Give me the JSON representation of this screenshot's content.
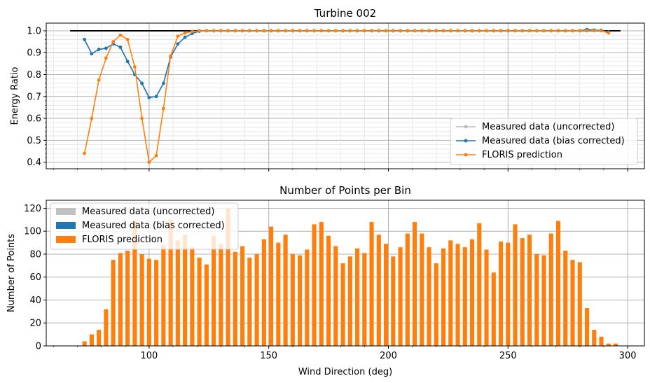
{
  "chart_data": [
    {
      "type": "line",
      "title": "Turbine 002",
      "xlabel": "",
      "ylabel": "Energy Ratio",
      "xlim": [
        57,
        307
      ],
      "ylim": [
        0.37,
        1.035
      ],
      "yticks": [
        0.4,
        0.5,
        0.6,
        0.7,
        0.8,
        0.9,
        1.0
      ],
      "ytick_labels": [
        "0.4",
        "0.5",
        "0.6",
        "0.7",
        "0.8",
        "0.9",
        "1.0"
      ],
      "xticks": [
        100,
        150,
        200,
        250,
        300
      ],
      "grid": true,
      "legend_position": "lower-right",
      "reference_line": {
        "y": 1.0,
        "x": [
          67,
          297
        ],
        "color": "#000000"
      },
      "series": [
        {
          "name": "Measured data (uncorrected)",
          "color": "#bbbbbb",
          "x": [
            73,
            76,
            79,
            82,
            85,
            88,
            91,
            94,
            97,
            100,
            103,
            106,
            109,
            112,
            115
          ],
          "y": [
            0.96,
            0.895,
            0.915,
            0.92,
            0.94,
            0.925,
            0.86,
            0.8,
            0.76,
            0.695,
            0.7,
            0.76,
            0.88,
            0.94,
            0.97
          ]
        },
        {
          "name": "Measured data (bias corrected)",
          "color": "#1f77b4",
          "x": [
            73,
            76,
            79,
            82,
            85,
            88,
            91,
            94,
            97,
            100,
            103,
            106,
            109,
            112,
            115,
            118,
            121,
            124,
            127,
            130,
            133,
            136,
            139,
            142,
            145,
            148,
            151,
            154,
            157,
            160,
            163,
            166,
            169,
            172,
            175,
            178,
            181,
            184,
            187,
            190,
            193,
            196,
            199,
            202,
            205,
            208,
            211,
            214,
            217,
            220,
            223,
            226,
            229,
            232,
            235,
            238,
            241,
            244,
            247,
            250,
            253,
            256,
            259,
            262,
            265,
            268,
            271,
            274,
            277,
            280,
            283,
            286,
            289,
            292
          ],
          "y": [
            0.96,
            0.895,
            0.915,
            0.92,
            0.94,
            0.925,
            0.86,
            0.8,
            0.76,
            0.695,
            0.7,
            0.76,
            0.88,
            0.94,
            0.97,
            0.988,
            0.998,
            1.0,
            1.0,
            1.0,
            1.0,
            1.0,
            1.0,
            1.0,
            1.0,
            1.0,
            1.0,
            1.0,
            1.0,
            1.0,
            1.0,
            1.0,
            1.0,
            1.0,
            1.0,
            1.0,
            1.0,
            1.0,
            1.0,
            1.0,
            1.0,
            1.0,
            1.0,
            1.0,
            1.0,
            1.0,
            1.0,
            1.0,
            1.0,
            1.0,
            1.0,
            1.0,
            1.0,
            1.0,
            1.0,
            1.0,
            1.0,
            1.0,
            1.0,
            1.0,
            1.0,
            1.0,
            1.0,
            1.0,
            1.0,
            1.0,
            1.0,
            1.0,
            1.0,
            1.0,
            1.006,
            1.003,
            1.002,
            0.995
          ]
        },
        {
          "name": "FLORIS prediction",
          "color": "#ff7f0e",
          "x": [
            73,
            76,
            79,
            82,
            85,
            88,
            91,
            94,
            97,
            100,
            103,
            106,
            109,
            112,
            115,
            118,
            121,
            124,
            127,
            130,
            133,
            136,
            139,
            142,
            145,
            148,
            151,
            154,
            157,
            160,
            163,
            166,
            169,
            172,
            175,
            178,
            181,
            184,
            187,
            190,
            193,
            196,
            199,
            202,
            205,
            208,
            211,
            214,
            217,
            220,
            223,
            226,
            229,
            232,
            235,
            238,
            241,
            244,
            247,
            250,
            253,
            256,
            259,
            262,
            265,
            268,
            271,
            274,
            277,
            280,
            283,
            286,
            289,
            292
          ],
          "y": [
            0.44,
            0.6,
            0.775,
            0.875,
            0.95,
            0.98,
            0.96,
            0.835,
            0.6,
            0.4,
            0.43,
            0.645,
            0.885,
            0.975,
            0.99,
            0.997,
            1.0,
            1.0,
            1.0,
            1.0,
            1.0,
            1.0,
            1.0,
            1.0,
            1.0,
            1.0,
            1.0,
            1.0,
            1.0,
            1.0,
            1.0,
            1.0,
            1.0,
            1.0,
            1.0,
            1.0,
            1.0,
            1.0,
            1.0,
            1.0,
            1.0,
            1.0,
            1.0,
            1.0,
            1.0,
            1.0,
            1.0,
            1.0,
            1.0,
            1.0,
            1.0,
            1.0,
            1.0,
            1.0,
            1.0,
            1.0,
            1.0,
            1.0,
            1.0,
            1.0,
            1.0,
            1.0,
            1.0,
            1.0,
            1.0,
            1.0,
            1.0,
            1.0,
            1.0,
            1.0,
            1.0,
            1.0,
            1.0,
            0.99
          ]
        }
      ]
    },
    {
      "type": "bar",
      "title": "Number of Points per Bin",
      "xlabel": "Wind Direction (deg)",
      "ylabel": "Number of Points",
      "xlim": [
        57,
        307
      ],
      "ylim": [
        0,
        127
      ],
      "yticks": [
        0,
        20,
        40,
        60,
        80,
        100,
        120
      ],
      "ytick_labels": [
        "0",
        "20",
        "40",
        "60",
        "80",
        "100",
        "120"
      ],
      "xticks": [
        100,
        150,
        200,
        250,
        300
      ],
      "xtick_labels": [
        "100",
        "150",
        "200",
        "250",
        "300"
      ],
      "grid": true,
      "legend_position": "upper-left",
      "x": [
        73,
        76,
        79,
        82,
        85,
        88,
        91,
        94,
        97,
        100,
        103,
        106,
        109,
        112,
        115,
        118,
        121,
        124,
        127,
        130,
        133,
        136,
        139,
        142,
        145,
        148,
        151,
        154,
        157,
        160,
        163,
        166,
        169,
        172,
        175,
        178,
        181,
        184,
        187,
        190,
        193,
        196,
        199,
        202,
        205,
        208,
        211,
        214,
        217,
        220,
        223,
        226,
        229,
        232,
        235,
        238,
        241,
        244,
        247,
        250,
        253,
        256,
        259,
        262,
        265,
        268,
        271,
        274,
        277,
        280,
        283,
        286,
        289,
        292,
        295
      ],
      "series": [
        {
          "name": "Measured data (uncorrected)",
          "color": "#c0c0c0",
          "values": [
            0,
            0,
            0,
            0,
            0,
            0,
            0,
            0,
            0,
            0,
            0,
            0,
            0,
            0,
            0,
            0,
            0,
            0,
            0,
            0,
            0,
            0,
            0,
            0,
            0,
            0,
            0,
            0,
            0,
            0,
            0,
            0,
            0,
            0,
            0,
            0,
            0,
            0,
            0,
            0,
            0,
            0,
            0,
            0,
            0,
            0,
            0,
            0,
            0,
            0,
            0,
            0,
            0,
            0,
            0,
            0,
            0,
            0,
            0,
            0,
            0,
            0,
            0,
            0,
            0,
            0,
            0,
            0,
            0,
            0,
            0,
            0,
            0,
            0,
            0
          ]
        },
        {
          "name": "Measured data (bias corrected)",
          "color": "#1f77b4",
          "values": [
            0,
            0,
            0,
            0,
            0,
            0,
            0,
            0,
            0,
            0,
            0,
            0,
            0,
            0,
            0,
            0,
            0,
            0,
            0,
            0,
            0,
            0,
            0,
            0,
            0,
            0,
            0,
            0,
            0,
            0,
            0,
            0,
            0,
            0,
            0,
            0,
            0,
            0,
            0,
            0,
            0,
            0,
            0,
            0,
            0,
            0,
            0,
            0,
            0,
            0,
            0,
            0,
            0,
            0,
            0,
            0,
            0,
            0,
            0,
            0,
            0,
            0,
            0,
            0,
            0,
            0,
            0,
            0,
            0,
            0,
            0,
            0,
            0,
            0,
            0
          ]
        },
        {
          "name": "FLORIS prediction",
          "color": "#ff7f0e",
          "values": [
            4,
            10,
            14,
            32,
            75,
            81,
            83,
            109,
            80,
            76,
            75,
            88,
            110,
            92,
            97,
            86,
            77,
            71,
            96,
            89,
            120,
            82,
            87,
            77,
            80,
            93,
            104,
            90,
            97,
            80,
            79,
            84,
            106,
            108,
            96,
            87,
            72,
            78,
            85,
            81,
            108,
            97,
            89,
            78,
            86,
            98,
            108,
            98,
            86,
            72,
            85,
            92,
            89,
            86,
            93,
            107,
            84,
            64,
            91,
            90,
            106,
            94,
            97,
            80,
            79,
            98,
            109,
            83,
            75,
            73,
            33,
            14,
            8,
            2,
            2
          ]
        }
      ]
    }
  ]
}
